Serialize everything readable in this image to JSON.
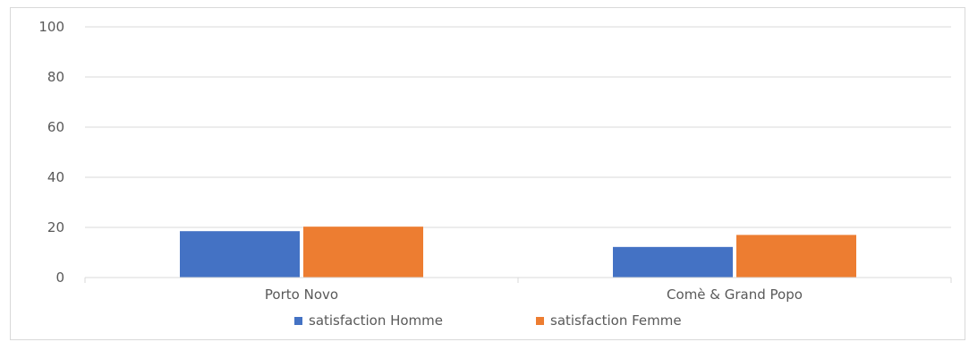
{
  "chart_data": {
    "type": "bar",
    "categories": [
      "Porto Novo",
      "Comè & Grand Popo"
    ],
    "series": [
      {
        "name": "satisfaction Homme",
        "values": [
          18.5,
          12.2
        ],
        "color": "#4472C4"
      },
      {
        "name": "satisfaction Femme",
        "values": [
          20.3,
          17.0
        ],
        "color": "#ED7D31"
      }
    ],
    "ylim": [
      0,
      100
    ],
    "yticks": [
      0,
      20,
      40,
      60,
      80,
      100
    ],
    "title": "",
    "xlabel": "",
    "ylabel": "",
    "grid": true,
    "legend_position": "bottom",
    "gridline_color": "#d9d9d9",
    "axis_text_color": "#595959"
  }
}
